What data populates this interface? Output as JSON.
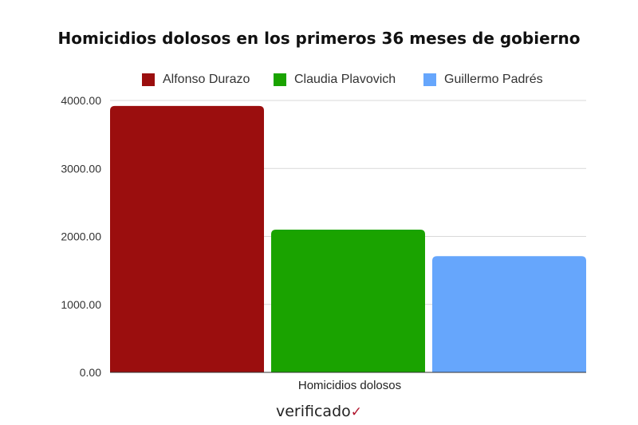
{
  "chart_data": {
    "type": "bar",
    "title": "Homicidios dolosos en los primeros 36 meses de gobierno",
    "categories": [
      "Homicidios dolosos"
    ],
    "series": [
      {
        "name": "Alfonso Durazo",
        "color": "#9b0e0e",
        "values": [
          3920
        ]
      },
      {
        "name": "Claudia Plavovich",
        "color": "#1aa300",
        "values": [
          2100
        ]
      },
      {
        "name": "Guillermo Padrés",
        "color": "#66a6fc",
        "values": [
          1710
        ]
      }
    ],
    "ylim": [
      0,
      4000
    ],
    "yticks": [
      "0.00",
      "1000.00",
      "2000.00",
      "3000.00",
      "4000.00"
    ],
    "grid": true,
    "legend_position": "top"
  },
  "watermark": {
    "text": "verificado",
    "mark": "✓"
  }
}
